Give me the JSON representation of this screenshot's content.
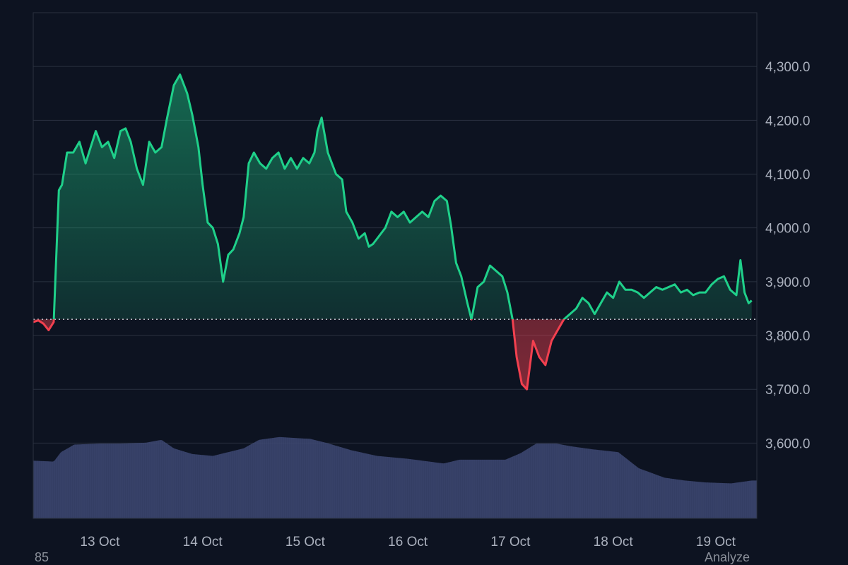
{
  "colors": {
    "background": "#0d1321",
    "grid": "#2a3140",
    "axis_text": "#aab0bd",
    "up_line": "#1fd08a",
    "down_line": "#f2404f",
    "volume": "#3c4670",
    "baseline": "#c8ccd4"
  },
  "chart_data": {
    "type": "baseline-area",
    "baseline_value": 3830,
    "ylim": [
      3460,
      4400
    ],
    "y_ticks": [
      3600,
      3700,
      3800,
      3900,
      4000,
      4100,
      4200,
      4300
    ],
    "y_tick_labels": [
      "3,600.0",
      "3,700.0",
      "3,800.0",
      "3,900.0",
      "4,000.0",
      "4,100.0",
      "4,200.0",
      "4,300.0"
    ],
    "x_ticks": [
      1,
      2,
      3,
      4,
      5,
      6,
      7
    ],
    "x_tick_labels": [
      "13 Oct",
      "14 Oct",
      "15 Oct",
      "16 Oct",
      "17 Oct",
      "18 Oct",
      "19 Oct"
    ],
    "xlim": [
      0.35,
      7.4
    ],
    "series": [
      {
        "points": [
          [
            0.35,
            3825
          ],
          [
            0.4,
            3828
          ],
          [
            0.45,
            3822
          ],
          [
            0.5,
            3810
          ],
          [
            0.55,
            3825
          ],
          [
            0.6,
            4070
          ],
          [
            0.63,
            4080
          ],
          [
            0.68,
            4140
          ],
          [
            0.74,
            4140
          ],
          [
            0.8,
            4160
          ],
          [
            0.86,
            4120
          ],
          [
            0.91,
            4150
          ],
          [
            0.96,
            4180
          ],
          [
            1.02,
            4150
          ],
          [
            1.08,
            4160
          ],
          [
            1.14,
            4130
          ],
          [
            1.2,
            4180
          ],
          [
            1.25,
            4185
          ],
          [
            1.3,
            4160
          ],
          [
            1.36,
            4110
          ],
          [
            1.42,
            4080
          ],
          [
            1.48,
            4160
          ],
          [
            1.54,
            4140
          ],
          [
            1.6,
            4150
          ],
          [
            1.65,
            4200
          ],
          [
            1.72,
            4265
          ],
          [
            1.78,
            4285
          ],
          [
            1.85,
            4250
          ],
          [
            1.9,
            4210
          ],
          [
            1.96,
            4150
          ],
          [
            2.0,
            4080
          ],
          [
            2.05,
            4010
          ],
          [
            2.1,
            4000
          ],
          [
            2.15,
            3970
          ],
          [
            2.2,
            3900
          ],
          [
            2.25,
            3950
          ],
          [
            2.3,
            3960
          ],
          [
            2.36,
            3990
          ],
          [
            2.4,
            4020
          ],
          [
            2.45,
            4120
          ],
          [
            2.5,
            4140
          ],
          [
            2.56,
            4120
          ],
          [
            2.62,
            4110
          ],
          [
            2.68,
            4130
          ],
          [
            2.74,
            4140
          ],
          [
            2.8,
            4110
          ],
          [
            2.86,
            4130
          ],
          [
            2.92,
            4110
          ],
          [
            2.98,
            4130
          ],
          [
            3.04,
            4120
          ],
          [
            3.09,
            4140
          ],
          [
            3.12,
            4180
          ],
          [
            3.16,
            4205
          ],
          [
            3.22,
            4140
          ],
          [
            3.26,
            4120
          ],
          [
            3.3,
            4100
          ],
          [
            3.36,
            4090
          ],
          [
            3.4,
            4030
          ],
          [
            3.46,
            4010
          ],
          [
            3.52,
            3980
          ],
          [
            3.58,
            3990
          ],
          [
            3.62,
            3965
          ],
          [
            3.66,
            3970
          ],
          [
            3.72,
            3985
          ],
          [
            3.78,
            4000
          ],
          [
            3.84,
            4030
          ],
          [
            3.9,
            4020
          ],
          [
            3.96,
            4030
          ],
          [
            4.02,
            4010
          ],
          [
            4.08,
            4020
          ],
          [
            4.14,
            4030
          ],
          [
            4.2,
            4020
          ],
          [
            4.26,
            4050
          ],
          [
            4.32,
            4060
          ],
          [
            4.38,
            4050
          ],
          [
            4.42,
            4005
          ],
          [
            4.47,
            3935
          ],
          [
            4.52,
            3910
          ],
          [
            4.58,
            3860
          ],
          [
            4.62,
            3830
          ],
          [
            4.68,
            3890
          ],
          [
            4.74,
            3900
          ],
          [
            4.8,
            3930
          ],
          [
            4.86,
            3920
          ],
          [
            4.92,
            3910
          ],
          [
            4.97,
            3880
          ],
          [
            5.02,
            3830
          ],
          [
            5.06,
            3760
          ],
          [
            5.11,
            3710
          ],
          [
            5.16,
            3700
          ],
          [
            5.22,
            3790
          ],
          [
            5.28,
            3760
          ],
          [
            5.34,
            3745
          ],
          [
            5.4,
            3790
          ],
          [
            5.46,
            3810
          ],
          [
            5.52,
            3830
          ],
          [
            5.58,
            3840
          ],
          [
            5.64,
            3850
          ],
          [
            5.7,
            3870
          ],
          [
            5.76,
            3860
          ],
          [
            5.82,
            3840
          ],
          [
            5.88,
            3860
          ],
          [
            5.94,
            3880
          ],
          [
            6.0,
            3870
          ],
          [
            6.06,
            3900
          ],
          [
            6.12,
            3885
          ],
          [
            6.18,
            3885
          ],
          [
            6.24,
            3880
          ],
          [
            6.3,
            3870
          ],
          [
            6.36,
            3880
          ],
          [
            6.42,
            3890
          ],
          [
            6.48,
            3885
          ],
          [
            6.54,
            3890
          ],
          [
            6.6,
            3895
          ],
          [
            6.66,
            3880
          ],
          [
            6.72,
            3885
          ],
          [
            6.78,
            3875
          ],
          [
            6.84,
            3880
          ],
          [
            6.9,
            3880
          ],
          [
            6.96,
            3895
          ],
          [
            7.02,
            3905
          ],
          [
            7.08,
            3910
          ],
          [
            7.14,
            3885
          ],
          [
            7.2,
            3875
          ],
          [
            7.24,
            3940
          ],
          [
            7.28,
            3880
          ],
          [
            7.32,
            3860
          ],
          [
            7.35,
            3865
          ]
        ]
      }
    ],
    "volume": [
      [
        0.35,
        0.61
      ],
      [
        0.55,
        0.6
      ],
      [
        0.62,
        0.7
      ],
      [
        0.75,
        0.78
      ],
      [
        1.0,
        0.79
      ],
      [
        1.2,
        0.79
      ],
      [
        1.45,
        0.8
      ],
      [
        1.6,
        0.83
      ],
      [
        1.72,
        0.74
      ],
      [
        1.9,
        0.68
      ],
      [
        2.1,
        0.66
      ],
      [
        2.25,
        0.7
      ],
      [
        2.4,
        0.74
      ],
      [
        2.55,
        0.83
      ],
      [
        2.75,
        0.86
      ],
      [
        3.05,
        0.84
      ],
      [
        3.2,
        0.8
      ],
      [
        3.45,
        0.72
      ],
      [
        3.7,
        0.66
      ],
      [
        4.0,
        0.63
      ],
      [
        4.35,
        0.58
      ],
      [
        4.5,
        0.62
      ],
      [
        4.75,
        0.62
      ],
      [
        4.95,
        0.62
      ],
      [
        5.1,
        0.69
      ],
      [
        5.25,
        0.79
      ],
      [
        5.45,
        0.79
      ],
      [
        5.6,
        0.76
      ],
      [
        5.8,
        0.73
      ],
      [
        6.05,
        0.7
      ],
      [
        6.25,
        0.53
      ],
      [
        6.5,
        0.43
      ],
      [
        6.7,
        0.4
      ],
      [
        6.9,
        0.38
      ],
      [
        7.15,
        0.37
      ],
      [
        7.35,
        0.4
      ]
    ]
  },
  "footer": {
    "left_text": "85",
    "right_text": "Analyze"
  }
}
